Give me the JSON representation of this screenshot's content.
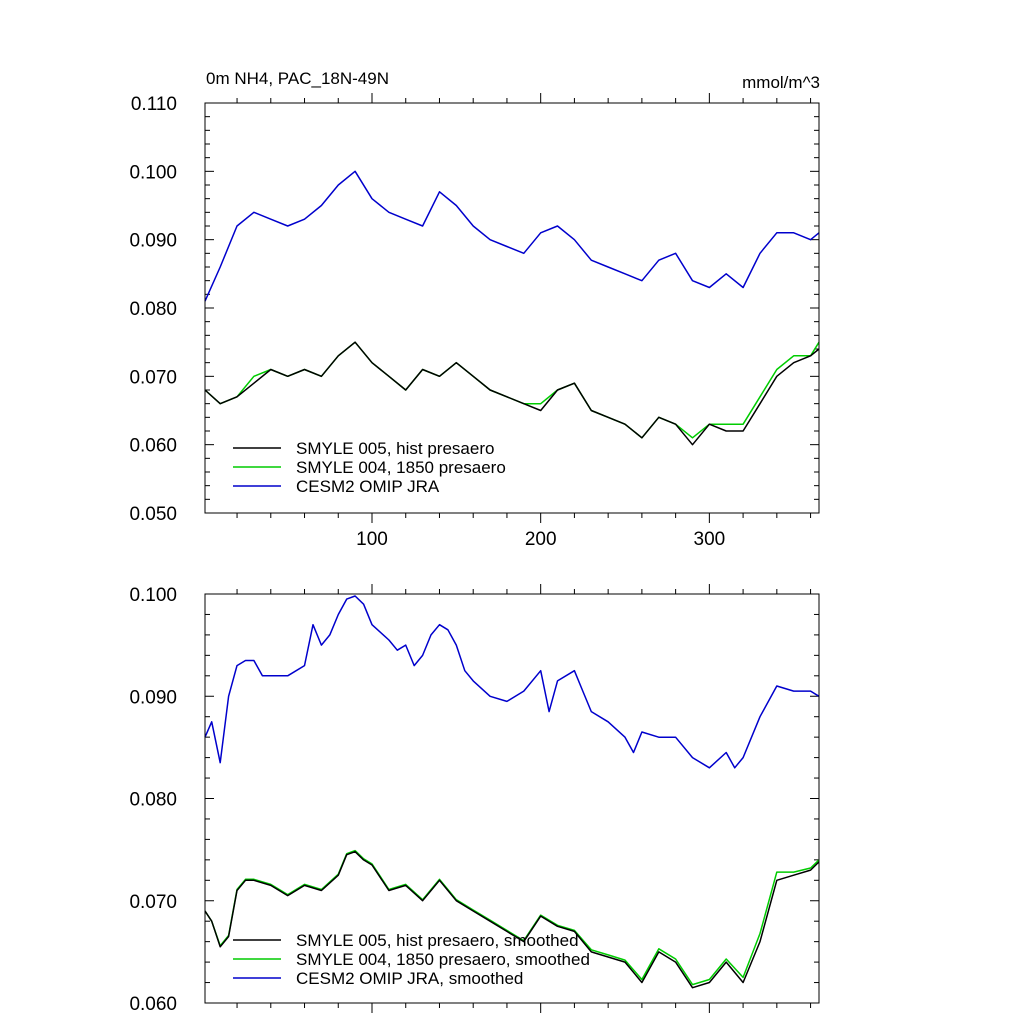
{
  "chart_data": [
    {
      "type": "line",
      "title": "0m NH4, PAC_18N-49N",
      "units": "mmol/m^3",
      "xlim": [
        1,
        365
      ],
      "ylim": [
        0.05,
        0.11
      ],
      "xticks": [
        100,
        200,
        300
      ],
      "yticks": [
        "0.050",
        "0.060",
        "0.070",
        "0.080",
        "0.090",
        "0.100",
        "0.110"
      ],
      "legend_position": "bottom-left",
      "series": [
        {
          "name": "SMYLE 005, hist presaero",
          "color": "#000000",
          "x": [
            1,
            10,
            20,
            30,
            40,
            50,
            60,
            70,
            80,
            90,
            100,
            110,
            120,
            130,
            140,
            150,
            160,
            170,
            180,
            190,
            200,
            210,
            220,
            230,
            240,
            250,
            260,
            270,
            280,
            290,
            300,
            310,
            320,
            330,
            340,
            350,
            360,
            365
          ],
          "y": [
            0.068,
            0.066,
            0.067,
            0.069,
            0.071,
            0.07,
            0.071,
            0.07,
            0.073,
            0.075,
            0.072,
            0.07,
            0.068,
            0.071,
            0.07,
            0.072,
            0.07,
            0.068,
            0.067,
            0.066,
            0.065,
            0.068,
            0.069,
            0.065,
            0.064,
            0.063,
            0.061,
            0.064,
            0.063,
            0.06,
            0.063,
            0.062,
            0.062,
            0.066,
            0.07,
            0.072,
            0.073,
            0.074
          ]
        },
        {
          "name": "SMYLE 004, 1850 presaero",
          "color": "#00cc00",
          "x": [
            1,
            10,
            20,
            30,
            40,
            50,
            60,
            70,
            80,
            90,
            100,
            110,
            120,
            130,
            140,
            150,
            160,
            170,
            180,
            190,
            200,
            210,
            220,
            230,
            240,
            250,
            260,
            270,
            280,
            290,
            300,
            310,
            320,
            330,
            340,
            350,
            360,
            365
          ],
          "y": [
            0.068,
            0.066,
            0.067,
            0.07,
            0.071,
            0.07,
            0.071,
            0.07,
            0.073,
            0.075,
            0.072,
            0.07,
            0.068,
            0.071,
            0.07,
            0.072,
            0.07,
            0.068,
            0.067,
            0.066,
            0.066,
            0.068,
            0.069,
            0.065,
            0.064,
            0.063,
            0.061,
            0.064,
            0.063,
            0.061,
            0.063,
            0.063,
            0.063,
            0.067,
            0.071,
            0.073,
            0.073,
            0.075
          ]
        },
        {
          "name": "CESM2 OMIP JRA",
          "color": "#0000cc",
          "x": [
            1,
            10,
            20,
            30,
            40,
            50,
            60,
            70,
            80,
            90,
            100,
            110,
            120,
            130,
            140,
            150,
            160,
            170,
            180,
            190,
            200,
            210,
            220,
            230,
            240,
            250,
            260,
            270,
            280,
            290,
            300,
            310,
            320,
            330,
            340,
            350,
            360,
            365
          ],
          "y": [
            0.081,
            0.086,
            0.092,
            0.094,
            0.093,
            0.092,
            0.093,
            0.095,
            0.098,
            0.1,
            0.096,
            0.094,
            0.093,
            0.092,
            0.097,
            0.095,
            0.092,
            0.09,
            0.089,
            0.088,
            0.091,
            0.092,
            0.09,
            0.087,
            0.086,
            0.085,
            0.084,
            0.087,
            0.088,
            0.084,
            0.083,
            0.085,
            0.083,
            0.088,
            0.091,
            0.091,
            0.09,
            0.091
          ]
        }
      ]
    },
    {
      "type": "line",
      "title": "",
      "xlim": [
        1,
        365
      ],
      "ylim": [
        0.06,
        0.1
      ],
      "xticks": [
        100,
        200,
        300
      ],
      "yticks": [
        "0.060",
        "0.070",
        "0.080",
        "0.090",
        "0.100"
      ],
      "legend_position": "bottom-left",
      "series": [
        {
          "name": "SMYLE 005, hist presaero, smoothed",
          "color": "#000000",
          "x": [
            1,
            5,
            10,
            15,
            20,
            25,
            30,
            40,
            50,
            60,
            70,
            80,
            85,
            90,
            95,
            100,
            110,
            120,
            130,
            140,
            150,
            160,
            170,
            180,
            190,
            200,
            210,
            220,
            230,
            240,
            250,
            260,
            270,
            280,
            290,
            300,
            310,
            320,
            330,
            340,
            350,
            360,
            365
          ],
          "y": [
            0.069,
            0.068,
            0.0655,
            0.0665,
            0.071,
            0.072,
            0.072,
            0.0715,
            0.0705,
            0.0715,
            0.071,
            0.0725,
            0.0745,
            0.0748,
            0.074,
            0.0735,
            0.071,
            0.0715,
            0.07,
            0.072,
            0.07,
            0.069,
            0.068,
            0.067,
            0.066,
            0.0685,
            0.0675,
            0.067,
            0.065,
            0.0645,
            0.064,
            0.062,
            0.065,
            0.064,
            0.0615,
            0.062,
            0.064,
            0.062,
            0.066,
            0.072,
            0.0725,
            0.073,
            0.0738
          ]
        },
        {
          "name": "SMYLE 004, 1850 presaero, smoothed",
          "color": "#00cc00",
          "x": [
            1,
            5,
            10,
            15,
            20,
            25,
            30,
            40,
            50,
            60,
            70,
            80,
            85,
            90,
            95,
            100,
            110,
            120,
            130,
            140,
            150,
            160,
            170,
            180,
            190,
            200,
            210,
            220,
            230,
            240,
            250,
            260,
            270,
            280,
            290,
            300,
            310,
            320,
            330,
            340,
            350,
            360,
            365
          ],
          "y": [
            0.069,
            0.068,
            0.0656,
            0.0666,
            0.0711,
            0.0721,
            0.0721,
            0.0716,
            0.0706,
            0.0716,
            0.0711,
            0.0726,
            0.0746,
            0.0749,
            0.0741,
            0.0736,
            0.0711,
            0.0716,
            0.0701,
            0.0721,
            0.0701,
            0.0691,
            0.0681,
            0.0671,
            0.0661,
            0.0686,
            0.0676,
            0.0671,
            0.0652,
            0.0647,
            0.0642,
            0.0623,
            0.0653,
            0.0643,
            0.0618,
            0.0623,
            0.0643,
            0.0625,
            0.0668,
            0.0728,
            0.0728,
            0.0732,
            0.074
          ]
        },
        {
          "name": "CESM2 OMIP JRA, smoothed",
          "color": "#0000cc",
          "x": [
            1,
            5,
            10,
            15,
            20,
            25,
            30,
            35,
            40,
            50,
            60,
            65,
            70,
            75,
            80,
            85,
            90,
            95,
            100,
            110,
            115,
            120,
            125,
            130,
            135,
            140,
            145,
            150,
            155,
            160,
            170,
            180,
            190,
            200,
            205,
            210,
            220,
            225,
            230,
            240,
            250,
            255,
            260,
            270,
            280,
            290,
            300,
            310,
            315,
            320,
            330,
            340,
            350,
            360,
            365
          ],
          "y": [
            0.086,
            0.0875,
            0.0835,
            0.09,
            0.093,
            0.0935,
            0.0935,
            0.092,
            0.092,
            0.092,
            0.093,
            0.097,
            0.095,
            0.096,
            0.098,
            0.0995,
            0.0998,
            0.099,
            0.097,
            0.0955,
            0.0945,
            0.095,
            0.093,
            0.094,
            0.096,
            0.097,
            0.0965,
            0.095,
            0.0925,
            0.0915,
            0.09,
            0.0895,
            0.0905,
            0.0925,
            0.0885,
            0.0915,
            0.0925,
            0.0905,
            0.0885,
            0.0875,
            0.086,
            0.0845,
            0.0865,
            0.086,
            0.086,
            0.084,
            0.083,
            0.0845,
            0.083,
            0.084,
            0.088,
            0.091,
            0.0905,
            0.0905,
            0.09
          ]
        }
      ]
    }
  ]
}
